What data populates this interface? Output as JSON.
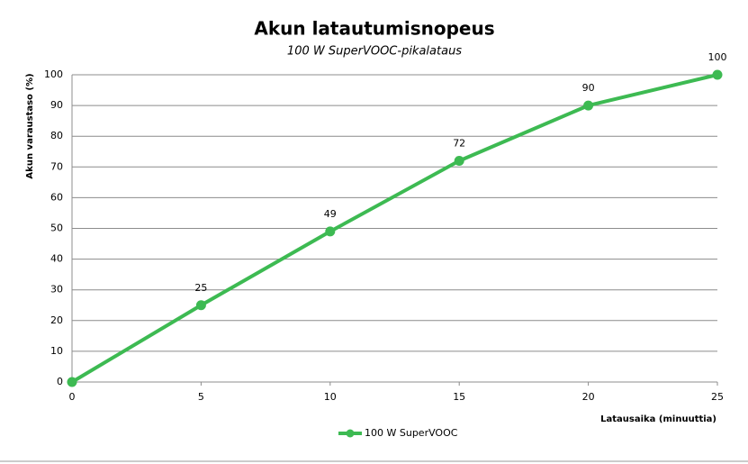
{
  "chart_data": {
    "type": "line",
    "title": "Akun latautumisnopeus",
    "subtitle": "100 W SuperVOOC-pikalataus",
    "x_label": "Latausaika  (minuuttia)",
    "y_label": "Akun varaustaso  (%)",
    "x": [
      0,
      5,
      10,
      15,
      20,
      25
    ],
    "series": [
      {
        "name": "100 W SuperVOOC",
        "color": "#3dba52",
        "values": [
          0,
          25,
          49,
          72,
          90,
          100
        ],
        "value_labels": [
          null,
          "25",
          "49",
          "72",
          "90",
          "100"
        ]
      }
    ],
    "xlim": [
      0,
      25
    ],
    "xticks": [
      0,
      5,
      10,
      15,
      20,
      25
    ],
    "ylim": [
      0,
      100
    ],
    "yticks": [
      0,
      10,
      20,
      30,
      40,
      50,
      60,
      70,
      80,
      90,
      100
    ],
    "grid": true,
    "legend": "bottom"
  }
}
